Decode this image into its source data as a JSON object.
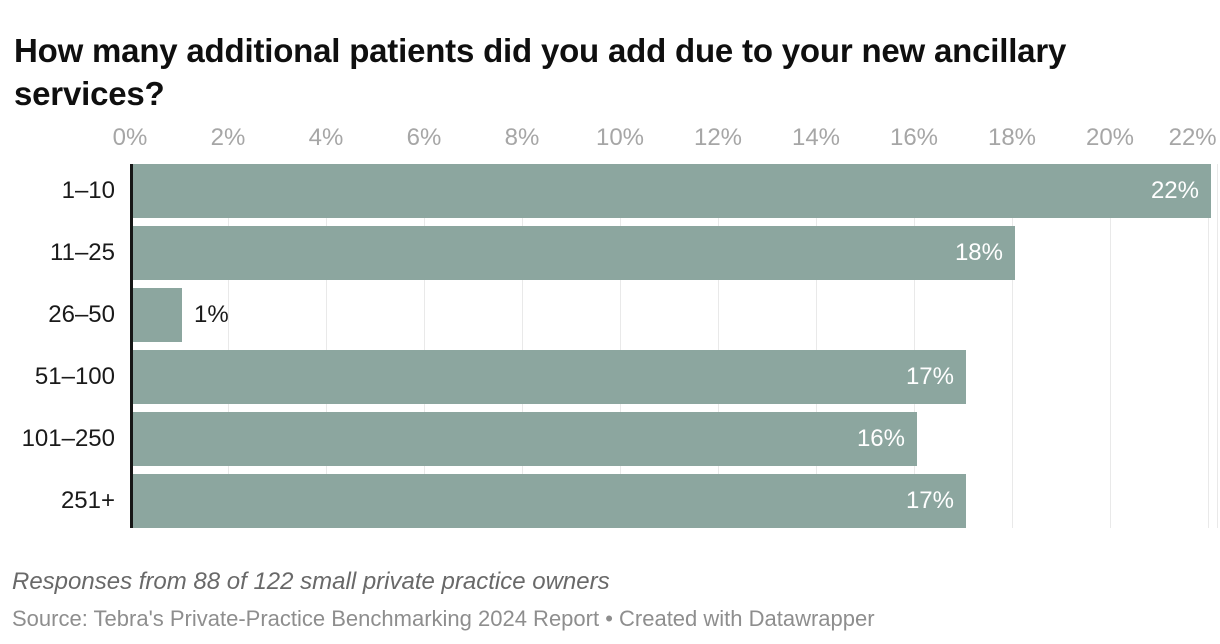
{
  "title": "How many additional patients did you add due to your new ancillary services?",
  "chart_data": {
    "type": "bar",
    "orientation": "horizontal",
    "title": "How many additional patients did you add due to your new ancillary services?",
    "categories": [
      "1–10",
      "11–25",
      "26–50",
      "51–100",
      "101–250",
      "251+"
    ],
    "values": [
      22,
      18,
      1,
      17,
      16,
      17
    ],
    "value_labels": [
      "22%",
      "18%",
      "1%",
      "17%",
      "16%",
      "17%"
    ],
    "x_ticks": [
      "0%",
      "2%",
      "4%",
      "6%",
      "8%",
      "10%",
      "12%",
      "14%",
      "16%",
      "18%",
      "20%",
      "22%"
    ],
    "xlim": [
      0,
      22
    ],
    "grid": true,
    "legend": "none",
    "bar_color": "#8CA69F",
    "gridline_color": "#e9e9e9",
    "axis_label_color": "#a6a6a6",
    "value_label_inside_color": "#ffffff",
    "value_label_outside_color": "#1a1a1a"
  },
  "footer": {
    "note": "Responses from 88 of 122 small private practice owners",
    "source": "Source: Tebra's Private-Practice Benchmarking 2024 Report • Created with Datawrapper"
  }
}
